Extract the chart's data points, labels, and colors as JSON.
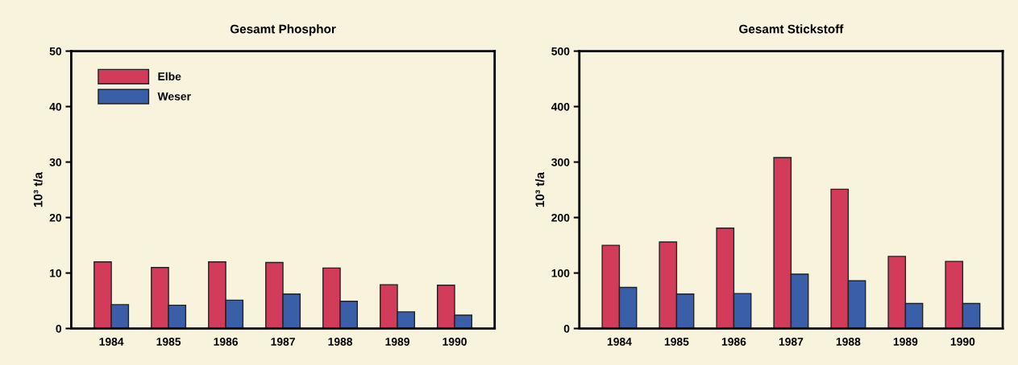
{
  "chart_data": [
    {
      "type": "bar",
      "title": "Gesamt Phosphor",
      "ylabel": "10³ t/a",
      "categories": [
        "1984",
        "1985",
        "1986",
        "1987",
        "1988",
        "1989",
        "1990"
      ],
      "ylim": [
        0,
        50
      ],
      "yticks": [
        0,
        10,
        20,
        30,
        40,
        50
      ],
      "grid": false,
      "legend": "top left",
      "series": [
        {
          "name": "Elbe",
          "color": "#d23c5a",
          "values": [
            12,
            11,
            12,
            11.9,
            10.9,
            7.9,
            7.8
          ]
        },
        {
          "name": "Weser",
          "color": "#3b5ea8",
          "values": [
            4.3,
            4.2,
            5.1,
            6.2,
            4.9,
            3,
            2.4
          ]
        }
      ]
    },
    {
      "type": "bar",
      "title": "Gesamt Stickstoff",
      "ylabel": "10³ t/a",
      "categories": [
        "1984",
        "1985",
        "1986",
        "1987",
        "1988",
        "1989",
        "1990"
      ],
      "ylim": [
        0,
        500
      ],
      "yticks": [
        0,
        100,
        200,
        300,
        400,
        500
      ],
      "grid": false,
      "series": [
        {
          "color": "#d23c5a",
          "values": [
            150,
            156,
            181,
            308,
            251,
            130,
            121
          ]
        },
        {
          "color": "#3b5ea8",
          "values": [
            74,
            62,
            63,
            98,
            86,
            45,
            45
          ]
        }
      ]
    }
  ]
}
